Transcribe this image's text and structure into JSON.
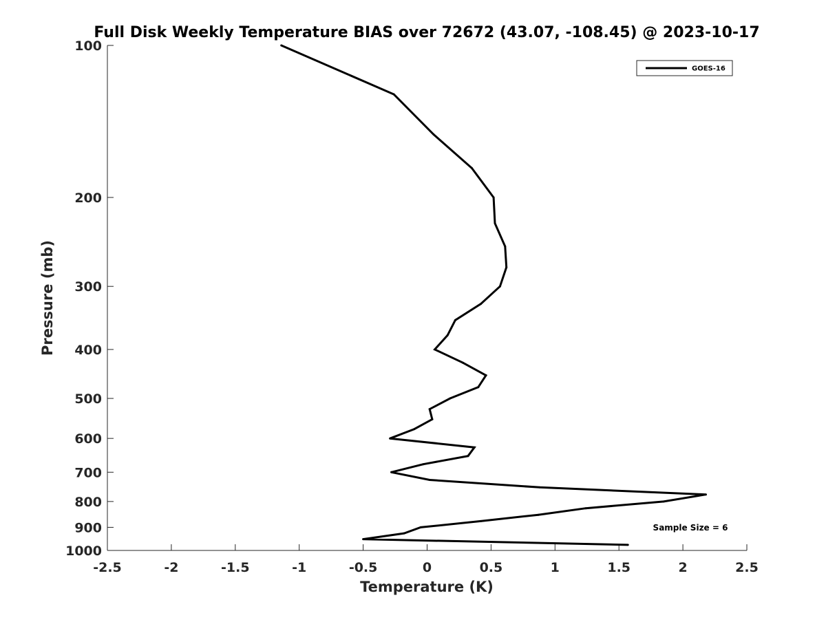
{
  "chart_data": {
    "type": "line",
    "title": "Full Disk Weekly Temperature BIAS over 72672 (43.07, -108.45) @ 2023-10-17",
    "xlabel": "Temperature (K)",
    "ylabel": "Pressure (mb)",
    "xlim": [
      -2.5,
      2.5
    ],
    "ylim": [
      100,
      1000
    ],
    "y_scale": "log",
    "y_reversed": true,
    "grid": false,
    "legend_placement": "top-right",
    "x_ticks": [
      -2.5,
      -2,
      -1.5,
      -1,
      -0.5,
      0,
      0.5,
      1,
      1.5,
      2,
      2.5
    ],
    "x_tick_labels": [
      "-2.5",
      "-2",
      "-1.5",
      "-1",
      "-0.5",
      "0",
      "0.5",
      "1",
      "1.5",
      "2",
      "2.5"
    ],
    "y_ticks": [
      100,
      200,
      300,
      400,
      500,
      600,
      700,
      800,
      900,
      1000
    ],
    "y_tick_labels": [
      "100",
      "200",
      "300",
      "400",
      "500",
      "600",
      "700",
      "800",
      "900",
      "1000"
    ],
    "series": [
      {
        "name": "GOES-16",
        "color": "#000000",
        "points": [
          {
            "x": -1.14,
            "p": 100
          },
          {
            "x": -0.26,
            "p": 125
          },
          {
            "x": 0.05,
            "p": 150
          },
          {
            "x": 0.35,
            "p": 175
          },
          {
            "x": 0.52,
            "p": 200
          },
          {
            "x": 0.53,
            "p": 225
          },
          {
            "x": 0.61,
            "p": 250
          },
          {
            "x": 0.62,
            "p": 275
          },
          {
            "x": 0.57,
            "p": 300
          },
          {
            "x": 0.42,
            "p": 325
          },
          {
            "x": 0.22,
            "p": 350
          },
          {
            "x": 0.16,
            "p": 375
          },
          {
            "x": 0.06,
            "p": 400
          },
          {
            "x": 0.28,
            "p": 425
          },
          {
            "x": 0.46,
            "p": 450
          },
          {
            "x": 0.4,
            "p": 475
          },
          {
            "x": 0.18,
            "p": 500
          },
          {
            "x": 0.02,
            "p": 525
          },
          {
            "x": 0.04,
            "p": 550
          },
          {
            "x": -0.1,
            "p": 575
          },
          {
            "x": -0.29,
            "p": 600
          },
          {
            "x": 0.37,
            "p": 625
          },
          {
            "x": 0.32,
            "p": 650
          },
          {
            "x": -0.03,
            "p": 675
          },
          {
            "x": -0.28,
            "p": 700
          },
          {
            "x": 0.02,
            "p": 725
          },
          {
            "x": 0.88,
            "p": 750
          },
          {
            "x": 2.18,
            "p": 775
          },
          {
            "x": 1.85,
            "p": 800
          },
          {
            "x": 1.24,
            "p": 825
          },
          {
            "x": 0.87,
            "p": 850
          },
          {
            "x": 0.42,
            "p": 875
          },
          {
            "x": -0.05,
            "p": 900
          },
          {
            "x": -0.18,
            "p": 925
          },
          {
            "x": -0.5,
            "p": 950
          },
          {
            "x": 1.57,
            "p": 975
          }
        ]
      }
    ],
    "annotations": [
      {
        "text": "Sample Size = 6"
      }
    ]
  }
}
